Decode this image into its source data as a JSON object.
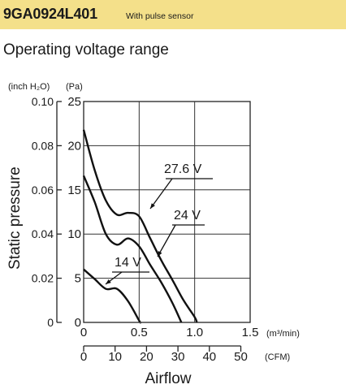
{
  "header": {
    "model": "9GA0924L401",
    "note": "With pulse sensor",
    "band_color": "#f4e08a"
  },
  "section_title": "Operating voltage range",
  "chart_data": {
    "type": "line",
    "ylabel": "Static pressure",
    "xlabel": "Airflow",
    "y_left_unit": "(inch H₂O)",
    "y_right_unit": "(Pa)",
    "x_primary_unit": "(m³/min)",
    "x_secondary_unit": "(CFM)",
    "y_pa_ticks": [
      "0",
      "5",
      "10",
      "15",
      "20",
      "25"
    ],
    "y_inch_ticks": [
      "0",
      "0.02",
      "0.04",
      "0.06",
      "0.08",
      "0.10"
    ],
    "x_m3_ticks": [
      "0",
      "0.5",
      "1.0",
      "1.5"
    ],
    "x_cfm_ticks": [
      "0",
      "10",
      "20",
      "30",
      "40",
      "50"
    ],
    "xlim": [
      0,
      1.5
    ],
    "ylim": [
      0,
      25
    ],
    "grid": true,
    "series": [
      {
        "name": "27.6 V",
        "points": [
          [
            0,
            21.8
          ],
          [
            0.1,
            17.2
          ],
          [
            0.2,
            13.8
          ],
          [
            0.3,
            12.2
          ],
          [
            0.4,
            12.4
          ],
          [
            0.5,
            12.0
          ],
          [
            0.6,
            9.5
          ],
          [
            0.7,
            7.0
          ],
          [
            0.8,
            4.8
          ],
          [
            0.9,
            2.5
          ],
          [
            1.0,
            0.6
          ],
          [
            1.02,
            0
          ]
        ]
      },
      {
        "name": "24 V",
        "points": [
          [
            0,
            16.6
          ],
          [
            0.1,
            13.6
          ],
          [
            0.2,
            10.0
          ],
          [
            0.3,
            8.8
          ],
          [
            0.4,
            9.5
          ],
          [
            0.5,
            8.6
          ],
          [
            0.6,
            6.5
          ],
          [
            0.7,
            4.5
          ],
          [
            0.8,
            2.2
          ],
          [
            0.88,
            0
          ]
        ]
      },
      {
        "name": "14 V",
        "points": [
          [
            0,
            6.0
          ],
          [
            0.1,
            4.9
          ],
          [
            0.2,
            3.8
          ],
          [
            0.3,
            3.8
          ],
          [
            0.4,
            2.4
          ],
          [
            0.5,
            0.2
          ],
          [
            0.51,
            0
          ]
        ]
      }
    ],
    "series_label_positions": [
      "mid-right",
      "mid-right",
      "left"
    ]
  }
}
